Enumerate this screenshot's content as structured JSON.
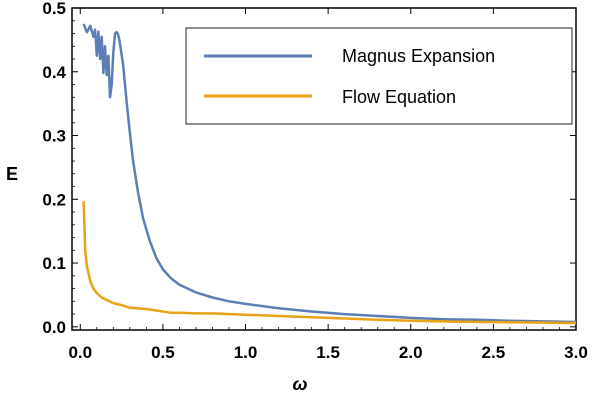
{
  "chart_data": {
    "type": "line",
    "xlabel": "ω",
    "ylabel": "E",
    "xlim": [
      -0.05,
      3.0
    ],
    "ylim": [
      -0.005,
      0.5
    ],
    "x_ticks": [
      "0.0",
      "0.5",
      "1.0",
      "1.5",
      "2.0",
      "2.5",
      "3.0"
    ],
    "x_tick_values": [
      0,
      0.5,
      1.0,
      1.5,
      2.0,
      2.5,
      3.0
    ],
    "y_ticks": [
      "0.0",
      "0.1",
      "0.2",
      "0.3",
      "0.4",
      "0.5"
    ],
    "y_tick_values": [
      0,
      0.1,
      0.2,
      0.3,
      0.4,
      0.5
    ],
    "legend_position": "top-right",
    "grid": false,
    "series": [
      {
        "name": "Magnus Expansion",
        "color": "#5b7fb5",
        "points": [
          [
            0.02,
            0.475
          ],
          [
            0.04,
            0.462
          ],
          [
            0.06,
            0.472
          ],
          [
            0.08,
            0.455
          ],
          [
            0.09,
            0.466
          ],
          [
            0.1,
            0.425
          ],
          [
            0.11,
            0.463
          ],
          [
            0.12,
            0.42
          ],
          [
            0.13,
            0.455
          ],
          [
            0.14,
            0.398
          ],
          [
            0.15,
            0.44
          ],
          [
            0.16,
            0.395
          ],
          [
            0.17,
            0.425
          ],
          [
            0.18,
            0.36
          ],
          [
            0.19,
            0.38
          ],
          [
            0.2,
            0.43
          ],
          [
            0.21,
            0.46
          ],
          [
            0.22,
            0.462
          ],
          [
            0.23,
            0.458
          ],
          [
            0.24,
            0.445
          ],
          [
            0.26,
            0.41
          ],
          [
            0.28,
            0.355
          ],
          [
            0.3,
            0.305
          ],
          [
            0.32,
            0.26
          ],
          [
            0.35,
            0.21
          ],
          [
            0.38,
            0.17
          ],
          [
            0.42,
            0.135
          ],
          [
            0.46,
            0.108
          ],
          [
            0.5,
            0.09
          ],
          [
            0.55,
            0.076
          ],
          [
            0.6,
            0.066
          ],
          [
            0.7,
            0.054
          ],
          [
            0.8,
            0.046
          ],
          [
            0.9,
            0.04
          ],
          [
            1.0,
            0.036
          ],
          [
            1.2,
            0.029
          ],
          [
            1.4,
            0.024
          ],
          [
            1.6,
            0.02
          ],
          [
            1.8,
            0.017
          ],
          [
            2.0,
            0.014
          ],
          [
            2.2,
            0.012
          ],
          [
            2.4,
            0.011
          ],
          [
            2.6,
            0.0095
          ],
          [
            2.8,
            0.0085
          ],
          [
            3.0,
            0.0075
          ]
        ]
      },
      {
        "name": "Flow Equation",
        "color": "#e8a317",
        "points": [
          [
            0.02,
            0.197
          ],
          [
            0.025,
            0.16
          ],
          [
            0.03,
            0.12
          ],
          [
            0.04,
            0.095
          ],
          [
            0.06,
            0.072
          ],
          [
            0.08,
            0.06
          ],
          [
            0.1,
            0.053
          ],
          [
            0.13,
            0.046
          ],
          [
            0.16,
            0.042
          ],
          [
            0.2,
            0.037
          ],
          [
            0.25,
            0.034
          ],
          [
            0.3,
            0.03
          ],
          [
            0.4,
            0.028
          ],
          [
            0.5,
            0.024
          ],
          [
            0.55,
            0.022
          ],
          [
            0.6,
            0.022
          ],
          [
            0.7,
            0.021
          ],
          [
            0.8,
            0.021
          ],
          [
            1.0,
            0.019
          ],
          [
            1.2,
            0.017
          ],
          [
            1.5,
            0.014
          ],
          [
            1.8,
            0.011
          ],
          [
            2.0,
            0.0095
          ],
          [
            2.3,
            0.008
          ],
          [
            2.6,
            0.007
          ],
          [
            3.0,
            0.006
          ]
        ]
      }
    ]
  }
}
